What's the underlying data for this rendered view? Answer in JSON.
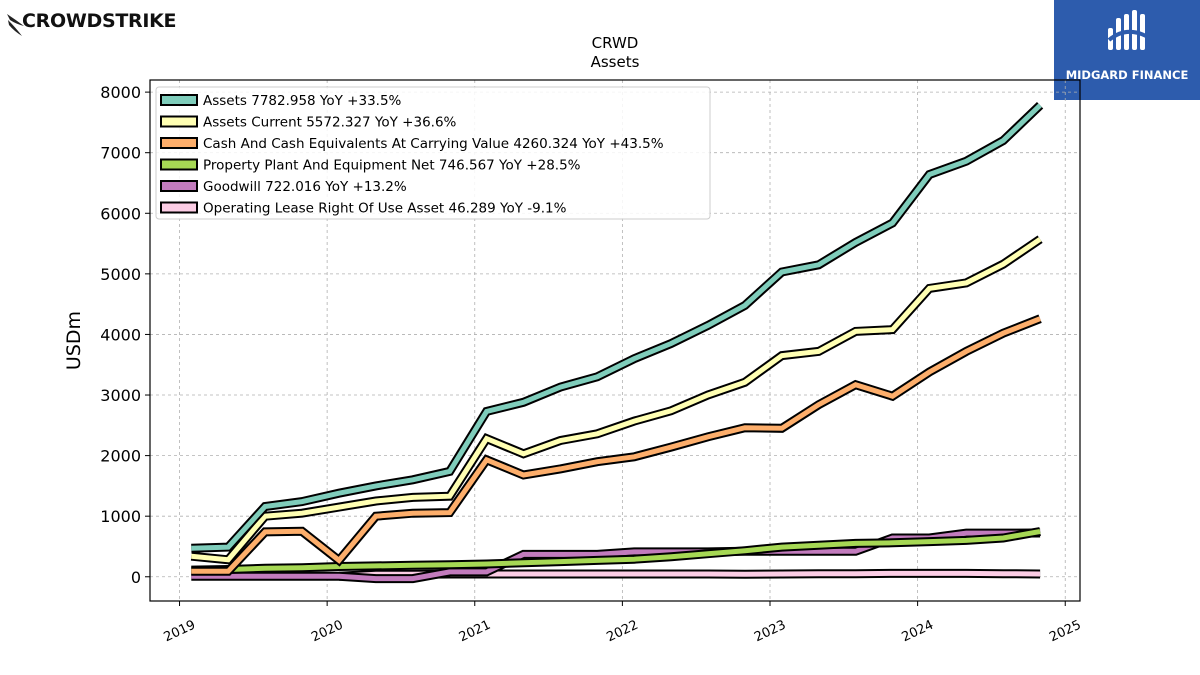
{
  "header": {
    "left_logo": "CROWDSTRIKE",
    "right_logo": "MIDGARD FINANCE"
  },
  "chart_data": {
    "type": "line",
    "title": "CRWD",
    "subtitle": "Assets",
    "xlabel": "",
    "ylabel": "USDm",
    "xlim": [
      2018.8,
      2025.1
    ],
    "ylim": [
      -400,
      8200
    ],
    "xticks": [
      "2019",
      "2020",
      "2021",
      "2022",
      "2023",
      "2024",
      "2025"
    ],
    "yticks": [
      "0",
      "1000",
      "2000",
      "3000",
      "4000",
      "5000",
      "6000",
      "7000",
      "8000"
    ],
    "grid": true,
    "legend_position": "top-left",
    "series": [
      {
        "name": "Assets",
        "legend": "Assets  7782.958 YoY +33.5%",
        "color": "#7fcdbb",
        "points": [
          [
            2019.08,
            470
          ],
          [
            2019.33,
            490
          ],
          [
            2019.58,
            1160
          ],
          [
            2019.83,
            1240
          ],
          [
            2020.08,
            1380
          ],
          [
            2020.33,
            1500
          ],
          [
            2020.58,
            1600
          ],
          [
            2020.83,
            1740
          ],
          [
            2021.08,
            2730
          ],
          [
            2021.33,
            2880
          ],
          [
            2021.58,
            3130
          ],
          [
            2021.83,
            3300
          ],
          [
            2022.08,
            3600
          ],
          [
            2022.33,
            3850
          ],
          [
            2022.58,
            4150
          ],
          [
            2022.83,
            4480
          ],
          [
            2023.08,
            5030
          ],
          [
            2023.33,
            5150
          ],
          [
            2023.58,
            5520
          ],
          [
            2023.83,
            5840
          ],
          [
            2024.08,
            6640
          ],
          [
            2024.33,
            6860
          ],
          [
            2024.58,
            7200
          ],
          [
            2024.83,
            7783
          ]
        ]
      },
      {
        "name": "Assets Current",
        "legend": "Assets Current  5572.327 YoY +36.6%",
        "color": "#ffffb3",
        "points": [
          [
            2019.08,
            340
          ],
          [
            2019.33,
            280
          ],
          [
            2019.58,
            1000
          ],
          [
            2019.83,
            1050
          ],
          [
            2020.08,
            1150
          ],
          [
            2020.33,
            1250
          ],
          [
            2020.58,
            1310
          ],
          [
            2020.83,
            1330
          ],
          [
            2021.08,
            2280
          ],
          [
            2021.33,
            2030
          ],
          [
            2021.58,
            2250
          ],
          [
            2021.83,
            2360
          ],
          [
            2022.08,
            2570
          ],
          [
            2022.33,
            2740
          ],
          [
            2022.58,
            3000
          ],
          [
            2022.83,
            3210
          ],
          [
            2023.08,
            3650
          ],
          [
            2023.33,
            3720
          ],
          [
            2023.58,
            4050
          ],
          [
            2023.83,
            4080
          ],
          [
            2024.08,
            4760
          ],
          [
            2024.33,
            4850
          ],
          [
            2024.58,
            5160
          ],
          [
            2024.83,
            5572
          ]
        ]
      },
      {
        "name": "Cash And Cash Equivalents At Carrying Value",
        "legend": "Cash And Cash Equivalents At Carrying Value  4260.324 YoY +43.5%",
        "color": "#fdae6b",
        "points": [
          [
            2019.08,
            90
          ],
          [
            2019.33,
            90
          ],
          [
            2019.58,
            740
          ],
          [
            2019.83,
            750
          ],
          [
            2020.08,
            270
          ],
          [
            2020.33,
            1000
          ],
          [
            2020.58,
            1050
          ],
          [
            2020.83,
            1060
          ],
          [
            2021.08,
            1930
          ],
          [
            2021.33,
            1680
          ],
          [
            2021.58,
            1780
          ],
          [
            2021.83,
            1900
          ],
          [
            2022.08,
            1980
          ],
          [
            2022.33,
            2140
          ],
          [
            2022.58,
            2310
          ],
          [
            2022.83,
            2460
          ],
          [
            2023.08,
            2450
          ],
          [
            2023.33,
            2840
          ],
          [
            2023.58,
            3170
          ],
          [
            2023.83,
            2980
          ],
          [
            2024.08,
            3380
          ],
          [
            2024.33,
            3720
          ],
          [
            2024.58,
            4020
          ],
          [
            2024.83,
            4260
          ]
        ]
      },
      {
        "name": "Property Plant And Equipment Net",
        "legend": "Property Plant And Equipment Net  746.567 YoY +28.5%",
        "color": "#a6d854",
        "points": [
          [
            2019.08,
            110
          ],
          [
            2019.33,
            120
          ],
          [
            2019.58,
            140
          ],
          [
            2019.83,
            150
          ],
          [
            2020.08,
            170
          ],
          [
            2020.33,
            180
          ],
          [
            2020.58,
            190
          ],
          [
            2020.83,
            200
          ],
          [
            2021.08,
            210
          ],
          [
            2021.33,
            230
          ],
          [
            2021.58,
            250
          ],
          [
            2021.83,
            270
          ],
          [
            2022.08,
            290
          ],
          [
            2022.33,
            330
          ],
          [
            2022.58,
            380
          ],
          [
            2022.83,
            430
          ],
          [
            2023.08,
            490
          ],
          [
            2023.33,
            520
          ],
          [
            2023.58,
            550
          ],
          [
            2023.83,
            560
          ],
          [
            2024.08,
            580
          ],
          [
            2024.33,
            600
          ],
          [
            2024.58,
            640
          ],
          [
            2024.83,
            747
          ]
        ]
      },
      {
        "name": "Goodwill",
        "legend": "Goodwill  722.016 YoY +13.2%",
        "color": "#c27bbd",
        "points": [
          [
            2019.08,
            10
          ],
          [
            2019.33,
            10
          ],
          [
            2019.58,
            10
          ],
          [
            2019.83,
            10
          ],
          [
            2020.08,
            10
          ],
          [
            2020.33,
            -30
          ],
          [
            2020.58,
            -30
          ],
          [
            2020.83,
            80
          ],
          [
            2021.08,
            80
          ],
          [
            2021.33,
            370
          ],
          [
            2021.58,
            370
          ],
          [
            2021.83,
            370
          ],
          [
            2022.08,
            410
          ],
          [
            2022.33,
            410
          ],
          [
            2022.58,
            410
          ],
          [
            2022.83,
            420
          ],
          [
            2023.08,
            420
          ],
          [
            2023.33,
            420
          ],
          [
            2023.58,
            420
          ],
          [
            2023.83,
            640
          ],
          [
            2024.08,
            640
          ],
          [
            2024.33,
            720
          ],
          [
            2024.58,
            720
          ],
          [
            2024.83,
            722
          ]
        ]
      },
      {
        "name": "Operating Lease Right Of Use Asset",
        "legend": "Operating Lease Right Of Use Asset  46.289 YoY -9.1%",
        "color": "#fccde5",
        "points": [
          [
            2020.08,
            10
          ],
          [
            2020.33,
            40
          ],
          [
            2020.58,
            40
          ],
          [
            2020.83,
            45
          ],
          [
            2021.08,
            45
          ],
          [
            2021.33,
            45
          ],
          [
            2021.58,
            45
          ],
          [
            2021.83,
            45
          ],
          [
            2022.08,
            45
          ],
          [
            2022.33,
            45
          ],
          [
            2022.58,
            45
          ],
          [
            2022.83,
            40
          ],
          [
            2023.08,
            45
          ],
          [
            2023.33,
            50
          ],
          [
            2023.58,
            50
          ],
          [
            2023.83,
            55
          ],
          [
            2024.08,
            55
          ],
          [
            2024.33,
            55
          ],
          [
            2024.58,
            50
          ],
          [
            2024.83,
            46
          ]
        ]
      }
    ]
  }
}
